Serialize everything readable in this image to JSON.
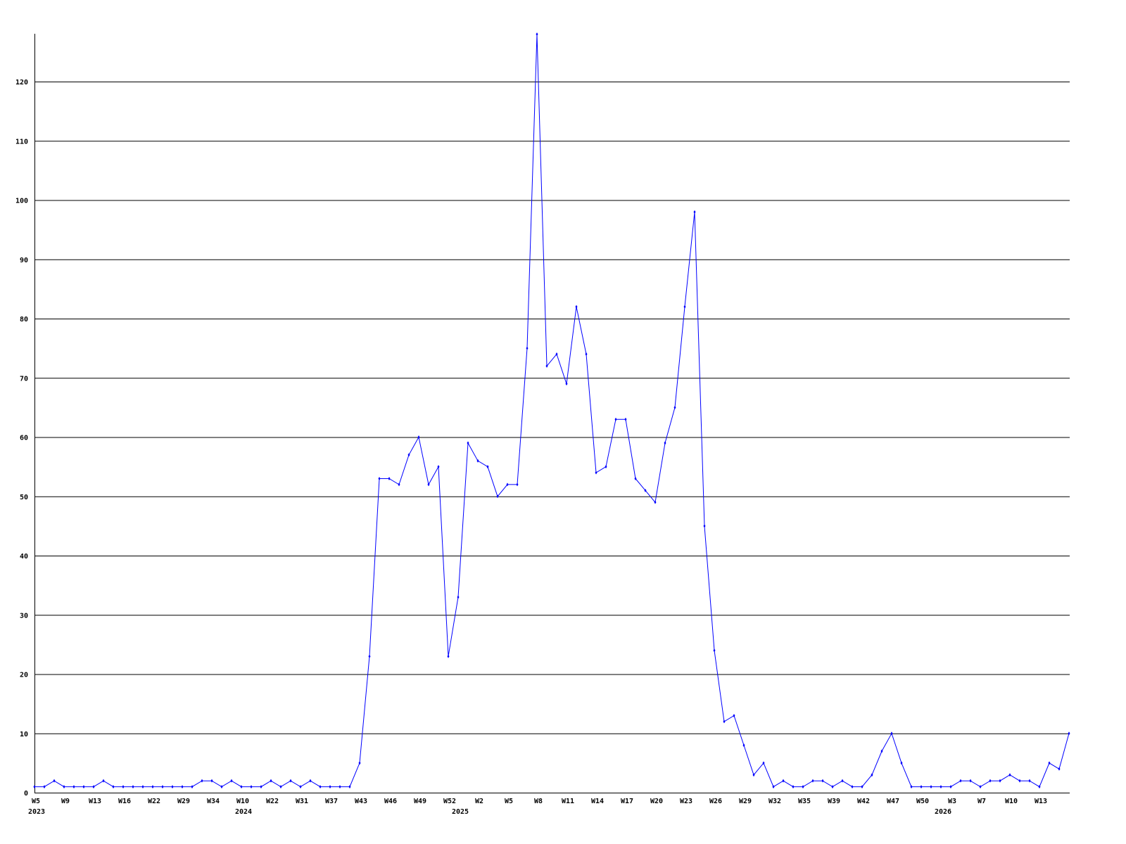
{
  "chart_data": {
    "type": "line",
    "title": "",
    "xlabel": "",
    "ylabel": "",
    "ylim": [
      0,
      128
    ],
    "yticks": [
      0,
      10,
      20,
      30,
      40,
      50,
      60,
      70,
      80,
      90,
      100,
      110,
      120
    ],
    "grid": true,
    "line_color": "#0000ff",
    "grid_color": "#000000",
    "x_tick_labels": [
      {
        "index": 0,
        "label": "W5"
      },
      {
        "index": 3,
        "label": "W9"
      },
      {
        "index": 6,
        "label": "W13"
      },
      {
        "index": 9,
        "label": "W16"
      },
      {
        "index": 12,
        "label": "W22"
      },
      {
        "index": 15,
        "label": "W29"
      },
      {
        "index": 18,
        "label": "W34"
      },
      {
        "index": 21,
        "label": "W10"
      },
      {
        "index": 24,
        "label": "W22"
      },
      {
        "index": 27,
        "label": "W31"
      },
      {
        "index": 30,
        "label": "W37"
      },
      {
        "index": 33,
        "label": "W43"
      },
      {
        "index": 36,
        "label": "W46"
      },
      {
        "index": 39,
        "label": "W49"
      },
      {
        "index": 42,
        "label": "W52"
      },
      {
        "index": 45,
        "label": "W2"
      },
      {
        "index": 48,
        "label": "W5"
      },
      {
        "index": 51,
        "label": "W8"
      },
      {
        "index": 54,
        "label": "W11"
      },
      {
        "index": 57,
        "label": "W14"
      },
      {
        "index": 60,
        "label": "W17"
      },
      {
        "index": 63,
        "label": "W20"
      },
      {
        "index": 66,
        "label": "W23"
      },
      {
        "index": 69,
        "label": "W26"
      },
      {
        "index": 72,
        "label": "W29"
      },
      {
        "index": 75,
        "label": "W32"
      },
      {
        "index": 78,
        "label": "W35"
      },
      {
        "index": 81,
        "label": "W39"
      },
      {
        "index": 84,
        "label": "W42"
      },
      {
        "index": 87,
        "label": "W47"
      },
      {
        "index": 90,
        "label": "W50"
      },
      {
        "index": 93,
        "label": "W3"
      },
      {
        "index": 96,
        "label": "W7"
      },
      {
        "index": 99,
        "label": "W10"
      },
      {
        "index": 102,
        "label": "W13"
      }
    ],
    "year_labels": [
      {
        "index": 0,
        "label": "2023"
      },
      {
        "index": 21,
        "label": "2024"
      },
      {
        "index": 43,
        "label": "2025"
      },
      {
        "index": 92,
        "label": "2026"
      }
    ],
    "values": [
      1,
      1,
      2,
      1,
      1,
      1,
      1,
      2,
      1,
      1,
      1,
      1,
      1,
      1,
      1,
      1,
      1,
      2,
      2,
      1,
      2,
      1,
      1,
      1,
      2,
      1,
      2,
      1,
      2,
      1,
      1,
      1,
      1,
      5,
      23,
      53,
      53,
      52,
      57,
      60,
      52,
      55,
      23,
      33,
      59,
      56,
      55,
      50,
      52,
      52,
      75,
      128,
      72,
      74,
      69,
      82,
      74,
      54,
      55,
      63,
      63,
      53,
      51,
      49,
      59,
      65,
      82,
      98,
      45,
      24,
      12,
      13,
      8,
      3,
      5,
      1,
      2,
      1,
      1,
      2,
      2,
      1,
      2,
      1,
      1,
      3,
      7,
      10,
      5,
      1,
      1,
      1,
      1,
      1,
      2,
      2,
      1,
      2,
      2,
      3,
      2,
      2,
      1,
      5,
      4,
      10
    ]
  }
}
